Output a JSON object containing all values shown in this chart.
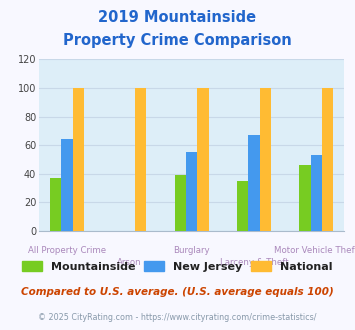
{
  "title_line1": "2019 Mountainside",
  "title_line2": "Property Crime Comparison",
  "categories": [
    "All Property Crime",
    "Arson",
    "Burglary",
    "Larceny & Theft",
    "Motor Vehicle Theft"
  ],
  "series": {
    "Mountainside": [
      37,
      0,
      39,
      35,
      46
    ],
    "New Jersey": [
      64,
      0,
      55,
      67,
      53
    ],
    "National": [
      100,
      100,
      100,
      100,
      100
    ]
  },
  "colors": {
    "Mountainside": "#77cc22",
    "New Jersey": "#4499ee",
    "National": "#ffbb33"
  },
  "ylim": [
    0,
    120
  ],
  "yticks": [
    0,
    20,
    40,
    60,
    80,
    100,
    120
  ],
  "fig_bg": "#f8f8ff",
  "plot_bg": "#ddeef8",
  "title_color": "#2266cc",
  "xlabel_color": "#aa88bb",
  "footer_text": "Compared to U.S. average. (U.S. average equals 100)",
  "footer_color": "#cc4400",
  "copyright_text": "© 2025 CityRating.com - https://www.cityrating.com/crime-statistics/",
  "copyright_color": "#8899aa",
  "grid_color": "#c8d8e8",
  "bar_width": 0.18
}
